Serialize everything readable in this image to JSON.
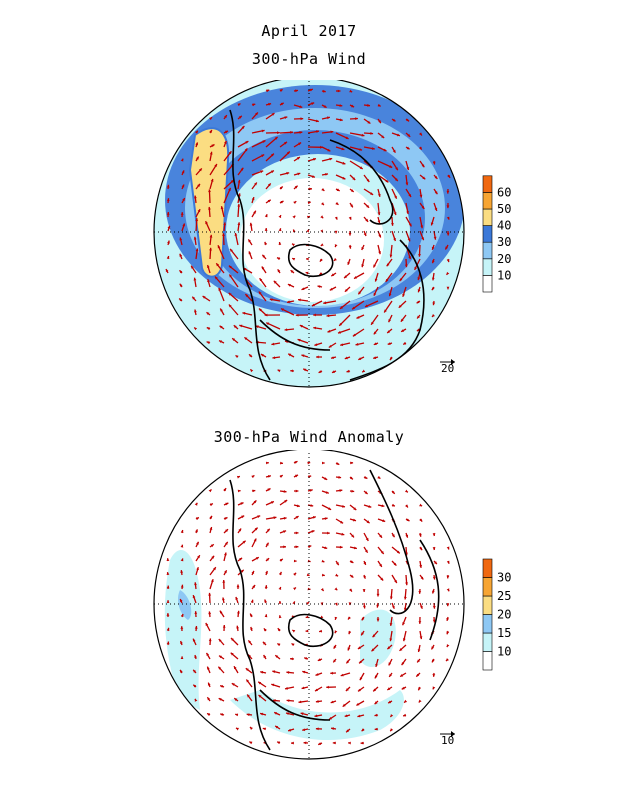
{
  "header": {
    "title": "April 2017",
    "panels": [
      {
        "title": "300-hPa Wind"
      },
      {
        "title": "300-hPa Wind Anomaly"
      }
    ]
  },
  "panels": [
    {
      "id": "wind",
      "colorbar": {
        "labels": [
          "10",
          "20",
          "30",
          "40",
          "50",
          "60"
        ],
        "colors": [
          "#ffffff",
          "#c6f4f8",
          "#8ec8f4",
          "#3b78d8",
          "#fbdd82",
          "#f7a533",
          "#f06810"
        ]
      },
      "reference_vector": "20"
    },
    {
      "id": "anomaly",
      "colorbar": {
        "labels": [
          "10",
          "15",
          "20",
          "25",
          "30"
        ],
        "colors": [
          "#ffffff",
          "#c6f4f8",
          "#8ec8f4",
          "#fbdd82",
          "#f7a533",
          "#f06810"
        ]
      },
      "reference_vector": "10"
    }
  ]
}
